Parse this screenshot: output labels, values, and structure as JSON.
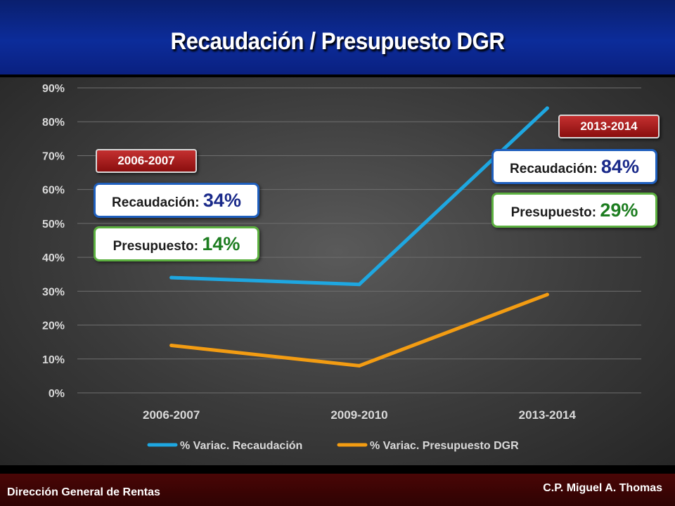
{
  "title": "Recaudación / Presupuesto DGR",
  "footer": {
    "left": "Dirección General de Rentas",
    "right": "C.P. Miguel A. Thomas"
  },
  "callouts": [
    {
      "badge": "2006-2007",
      "rec_label": "Recaudación: ",
      "rec_value": "34%",
      "pre_label": "Presupuesto: ",
      "pre_value": "14%"
    },
    {
      "badge": "2013-2014",
      "rec_label": "Recaudación: ",
      "rec_value": "84%",
      "pre_label": "Presupuesto: ",
      "pre_value": "29%"
    }
  ],
  "chart_data": {
    "type": "line",
    "categories": [
      "2006-2007",
      "2009-2010",
      "2013-2014"
    ],
    "series": [
      {
        "name": "% Variac. Recaudación",
        "values": [
          34,
          32,
          84
        ],
        "color": "#1ea7e1"
      },
      {
        "name": "% Variac. Presupuesto DGR",
        "values": [
          14,
          8,
          29
        ],
        "color": "#f39c12"
      }
    ],
    "yticks": [
      "0%",
      "10%",
      "20%",
      "30%",
      "40%",
      "50%",
      "60%",
      "70%",
      "80%",
      "90%"
    ],
    "ylim": [
      0,
      90
    ],
    "grid": true,
    "legend_position": "bottom"
  }
}
